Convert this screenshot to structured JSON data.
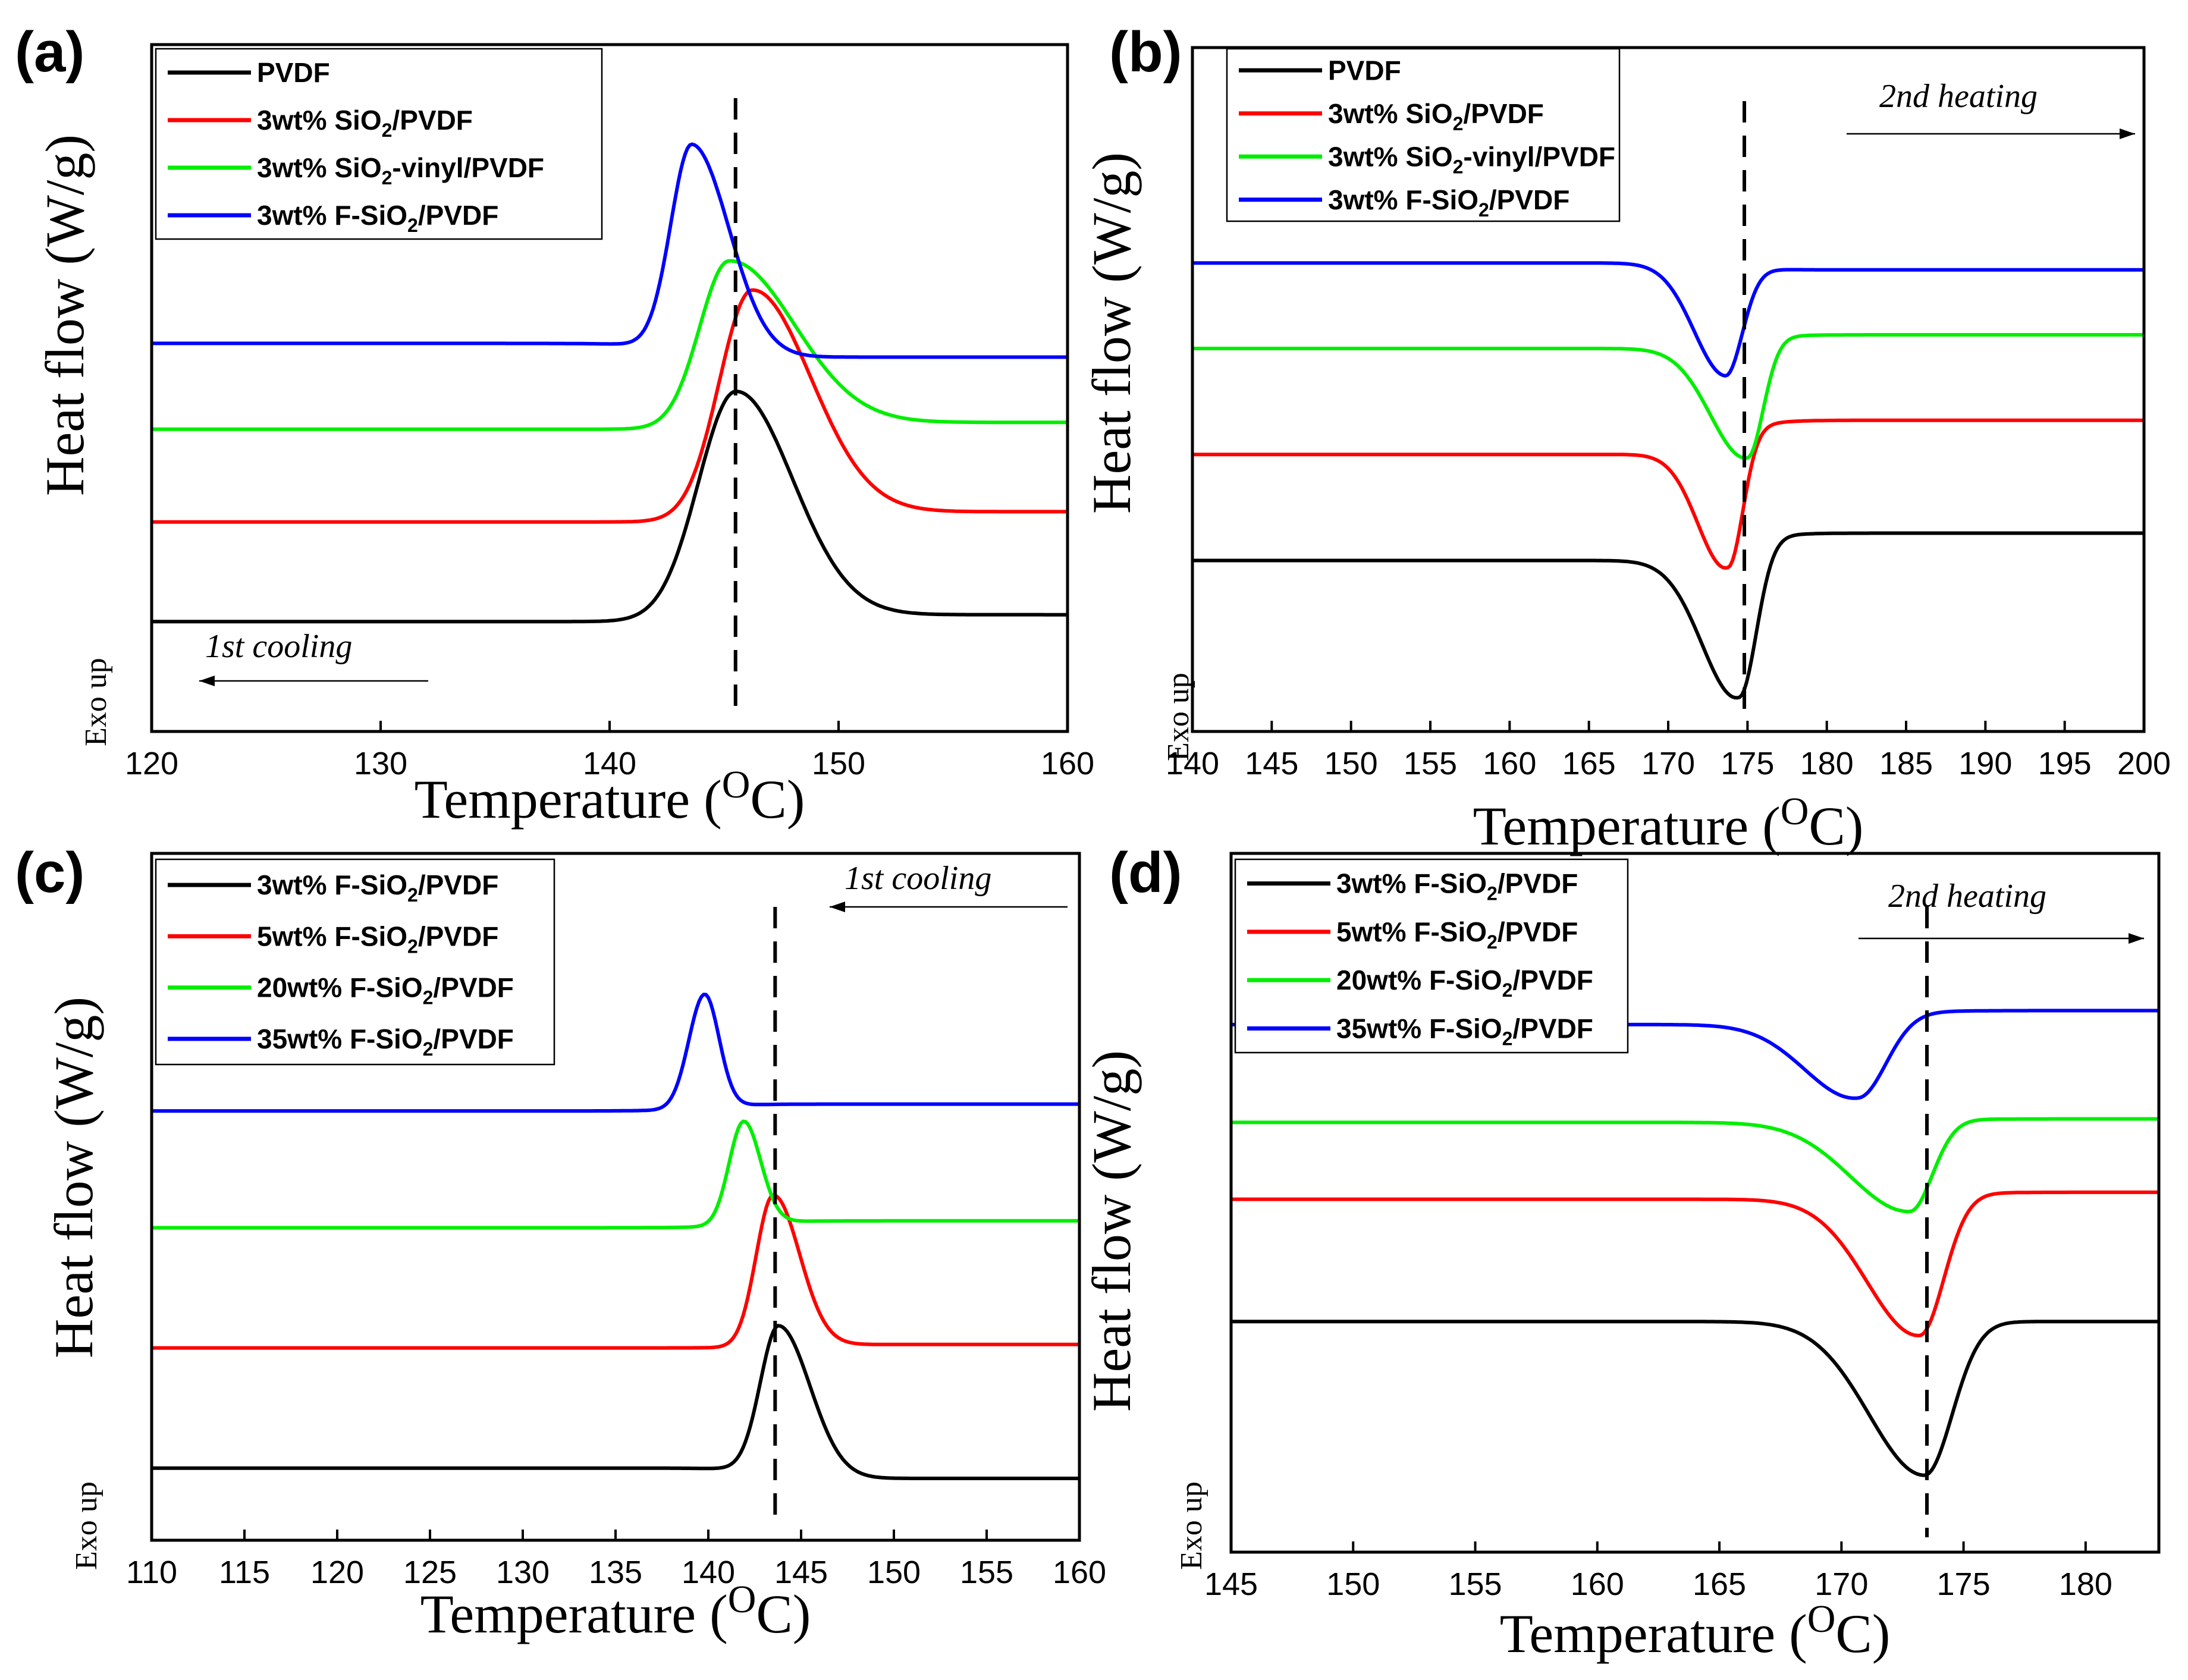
{
  "chart_data": [
    {
      "panel": "(a)",
      "type": "line",
      "xlabel": "Temperature (",
      "xlabel_unit": "O",
      "xlabel_end": "C)",
      "ylabel": "Heat flow (W/g)",
      "exo_label": "Exo up",
      "annotation": "1st cooling",
      "xlim": [
        120,
        160
      ],
      "xticks": [
        120,
        130,
        140,
        150,
        160
      ],
      "dashed_line_x": 145.5,
      "series": [
        {
          "name": "PVDF",
          "wt": "",
          "chem": "PVDF",
          "color": "#000000",
          "baseline_left": 0.16,
          "baseline_right": 0.17,
          "peak_x": 145.5,
          "peak_height": 0.33,
          "width_left": 2.3,
          "width_right": 3.5
        },
        {
          "name": "3wt% SiO2/PVDF",
          "wt": "3wt%",
          "chem": "SiO",
          "chem_sub": "2",
          "chem_end": "/PVDF",
          "color": "#ff0000",
          "baseline_left": 0.305,
          "baseline_right": 0.32,
          "peak_x": 146.2,
          "peak_height": 0.33,
          "width_left": 2.0,
          "width_right": 3.6
        },
        {
          "name": "3wt% SiO2-vinyl/PVDF",
          "wt": "3wt%",
          "chem": "SiO",
          "chem_sub": "2",
          "chem_end": "-vinyl/PVDF",
          "color": "#00ee00",
          "baseline_left": 0.44,
          "baseline_right": 0.45,
          "peak_x": 145.2,
          "peak_height": 0.24,
          "width_left": 1.8,
          "width_right": 4.0
        },
        {
          "name": "3wt% F-SiO2/PVDF",
          "wt": "3wt%",
          "chem": "F-SiO",
          "chem_sub": "2",
          "chem_end": "/PVDF",
          "color": "#0000ff",
          "baseline_left": 0.565,
          "baseline_right": 0.545,
          "peak_x": 143.6,
          "peak_height": 0.3,
          "width_left": 1.3,
          "width_right": 2.3
        }
      ]
    },
    {
      "panel": "(b)",
      "type": "line",
      "xlabel": "Temperature (",
      "xlabel_unit": "O",
      "xlabel_end": "C)",
      "ylabel": "Heat flow (W/g)",
      "exo_label": "Exo up",
      "annotation": "2nd heating",
      "xlim": [
        140,
        200
      ],
      "xticks": [
        140,
        145,
        150,
        155,
        160,
        165,
        170,
        175,
        180,
        185,
        190,
        195,
        200
      ],
      "dashed_line_x": 174.8,
      "series": [
        {
          "name": "PVDF",
          "wt": "",
          "chem": "PVDF",
          "color": "#000000",
          "baseline_left": 0.25,
          "baseline_right": 0.29,
          "peak_x": 174.5,
          "peak_height": -0.22,
          "width_left": 3.2,
          "width_right": 1.5
        },
        {
          "name": "3wt% SiO2/PVDF",
          "wt": "3wt%",
          "chem": "SiO",
          "chem_sub": "2",
          "chem_end": "/PVDF",
          "color": "#ff0000",
          "baseline_left": 0.405,
          "baseline_right": 0.455,
          "peak_x": 173.8,
          "peak_height": -0.19,
          "width_left": 2.6,
          "width_right": 1.3
        },
        {
          "name": "3wt% SiO2-vinyl/PVDF",
          "wt": "3wt%",
          "chem": "SiO",
          "chem_sub": "2",
          "chem_end": "-vinyl/PVDF",
          "color": "#00ee00",
          "baseline_left": 0.56,
          "baseline_right": 0.58,
          "peak_x": 175.0,
          "peak_height": -0.17,
          "width_left": 3.2,
          "width_right": 1.4
        },
        {
          "name": "3wt% F-SiO2/PVDF",
          "wt": "3wt%",
          "chem": "F-SiO",
          "chem_sub": "2",
          "chem_end": "/PVDF",
          "color": "#0000ff",
          "baseline_left": 0.685,
          "baseline_right": 0.675,
          "peak_x": 173.6,
          "peak_height": -0.16,
          "width_left": 2.8,
          "width_right": 1.5
        }
      ]
    },
    {
      "panel": "(c)",
      "type": "line",
      "xlabel": "Temperature (",
      "xlabel_unit": "O",
      "xlabel_end": "C)",
      "ylabel": "Heat flow (W/g)",
      "exo_label": "Exo up",
      "annotation": "1st cooling",
      "xlim": [
        110,
        160
      ],
      "xticks": [
        110,
        115,
        120,
        125,
        130,
        135,
        140,
        145,
        150,
        155,
        160
      ],
      "dashed_line_x": 143.6,
      "series": [
        {
          "name": "3wt% F-SiO2/PVDF",
          "wt": "3wt%",
          "chem": "F-SiO",
          "chem_sub": "2",
          "chem_end": "/PVDF",
          "color": "#000000",
          "baseline_left": 0.105,
          "baseline_right": 0.09,
          "peak_x": 143.8,
          "peak_height": 0.215,
          "width_left": 1.4,
          "width_right": 2.4
        },
        {
          "name": "5wt% F-SiO2/PVDF",
          "wt": "5wt%",
          "chem": "F-SiO",
          "chem_sub": "2",
          "chem_end": "/PVDF",
          "color": "#ff0000",
          "baseline_left": 0.28,
          "baseline_right": 0.285,
          "peak_x": 143.5,
          "peak_height": 0.22,
          "width_left": 1.3,
          "width_right": 2.0
        },
        {
          "name": "20wt% F-SiO2/PVDF",
          "wt": "20wt%",
          "chem": "F-SiO",
          "chem_sub": "2",
          "chem_end": "/PVDF",
          "color": "#00ee00",
          "baseline_left": 0.455,
          "baseline_right": 0.465,
          "peak_x": 141.9,
          "peak_height": 0.15,
          "width_left": 1.1,
          "width_right": 1.3
        },
        {
          "name": "35wt% F-SiO2/PVDF",
          "wt": "35wt%",
          "chem": "F-SiO",
          "chem_sub": "2",
          "chem_end": "/PVDF",
          "color": "#0000ff",
          "baseline_left": 0.625,
          "baseline_right": 0.635,
          "peak_x": 139.8,
          "peak_height": 0.165,
          "width_left": 1.2,
          "width_right": 1.1
        }
      ]
    },
    {
      "panel": "(d)",
      "type": "line",
      "xlabel": "Temperature (",
      "xlabel_unit": "O",
      "xlabel_end": "C)",
      "ylabel": "Heat flow (W/g)",
      "exo_label": "Exo up",
      "annotation": "2nd heating",
      "xlim": [
        145,
        183
      ],
      "xticks": [
        145,
        150,
        155,
        160,
        165,
        170,
        175,
        180
      ],
      "dashed_line_x": 173.5,
      "series": [
        {
          "name": "3wt% F-SiO2/PVDF",
          "wt": "3wt%",
          "chem": "F-SiO",
          "chem_sub": "2",
          "chem_end": "/PVDF",
          "color": "#000000",
          "baseline_left": 0.33,
          "baseline_right": 0.33,
          "peak_x": 173.4,
          "peak_height": -0.22,
          "width_left": 3.2,
          "width_right": 1.6
        },
        {
          "name": "5wt% F-SiO2/PVDF",
          "wt": "5wt%",
          "chem": "F-SiO",
          "chem_sub": "2",
          "chem_end": "/PVDF",
          "color": "#ff0000",
          "baseline_left": 0.505,
          "baseline_right": 0.515,
          "peak_x": 173.2,
          "peak_height": -0.2,
          "width_left": 3.0,
          "width_right": 1.4
        },
        {
          "name": "20wt% F-SiO2/PVDF",
          "wt": "20wt%",
          "chem": "F-SiO",
          "chem_sub": "2",
          "chem_end": "/PVDF",
          "color": "#00ee00",
          "baseline_left": 0.615,
          "baseline_right": 0.62,
          "peak_x": 172.8,
          "peak_height": -0.13,
          "width_left": 3.4,
          "width_right": 1.3
        },
        {
          "name": "35wt% F-SiO2/PVDF",
          "wt": "35wt%",
          "chem": "F-SiO",
          "chem_sub": "2",
          "chem_end": "/PVDF",
          "color": "#0000ff",
          "baseline_left": 0.755,
          "baseline_right": 0.775,
          "peak_x": 170.7,
          "peak_height": -0.115,
          "width_left": 3.0,
          "width_right": 1.6
        }
      ]
    }
  ]
}
